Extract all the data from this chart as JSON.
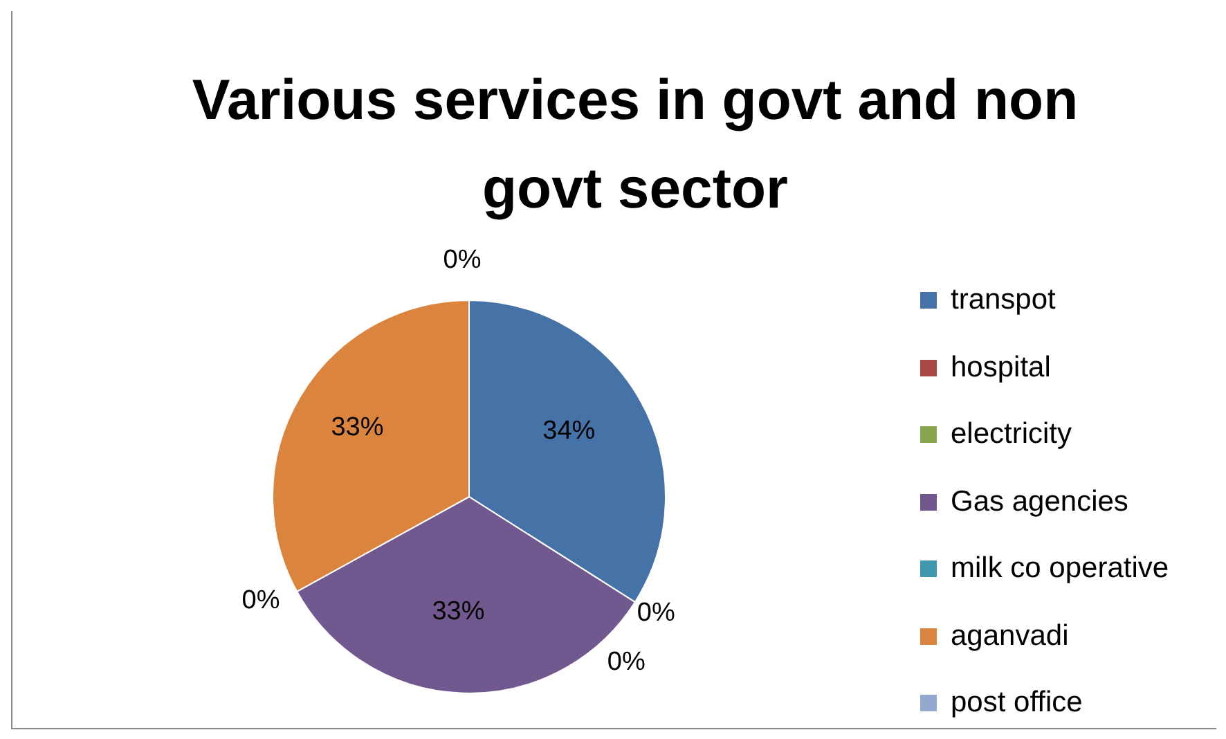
{
  "chart_data": {
    "type": "pie",
    "title": "Various services in govt and non govt sector",
    "categories": [
      "transpot",
      "hospital",
      "electricity",
      "Gas agencies",
      "milk co operative",
      "aganvadi",
      "post office"
    ],
    "values": [
      34,
      0,
      0,
      33,
      0,
      33,
      0
    ],
    "value_labels": [
      "34%",
      "0%",
      "0%",
      "33%",
      "0%",
      "33%",
      "0%"
    ],
    "colors": [
      "#4572a7",
      "#aa4643",
      "#89a54e",
      "#71588f",
      "#4198af",
      "#db843d",
      "#93a9cf"
    ],
    "legend": "right"
  }
}
